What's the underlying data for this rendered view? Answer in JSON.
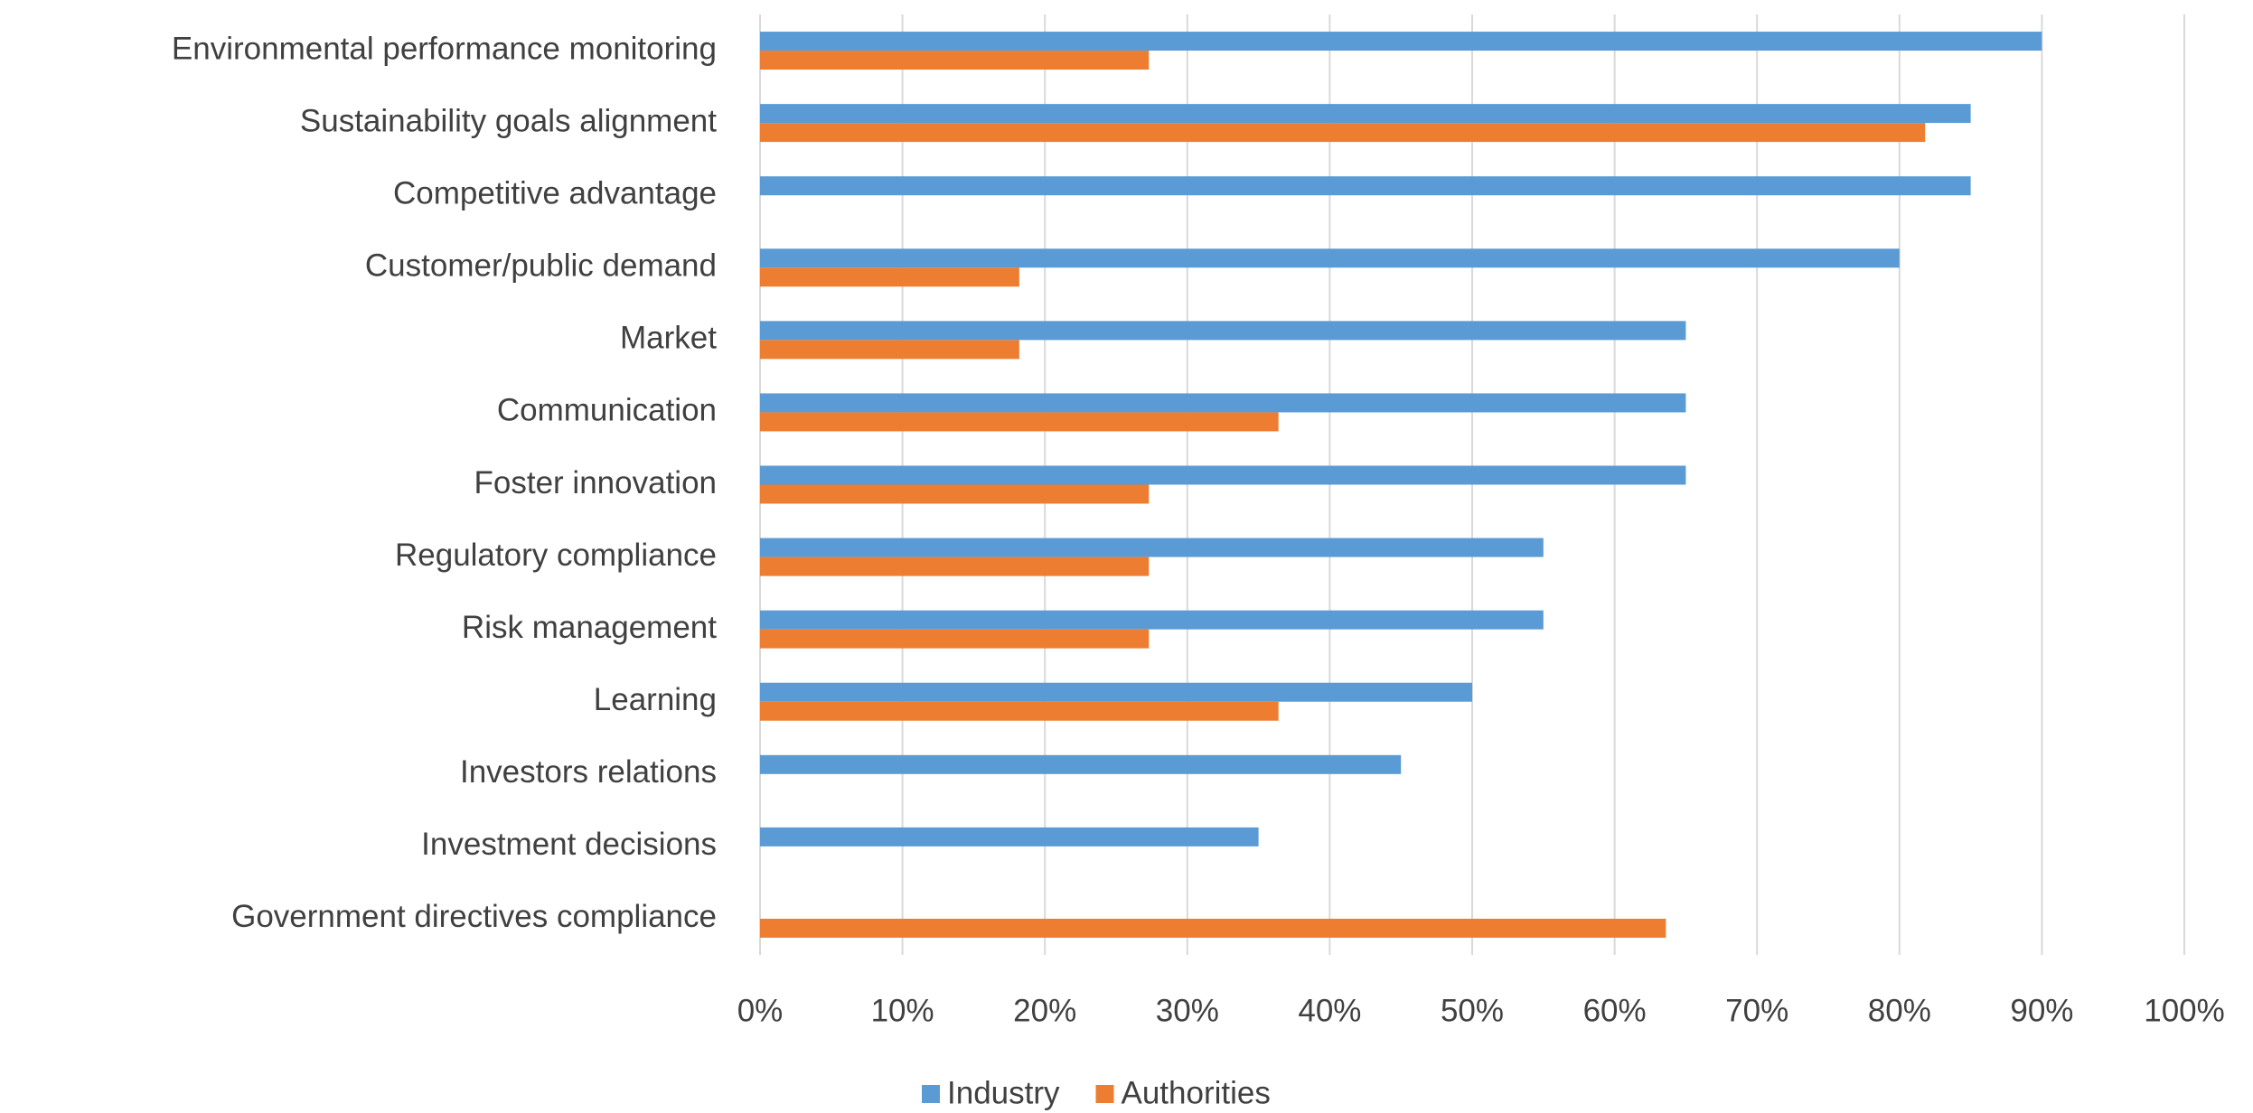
{
  "chart_data": {
    "type": "hbar",
    "categories": [
      "Environmental performance monitoring",
      "Sustainability goals alignment",
      "Competitive advantage",
      "Customer/public demand",
      "Market",
      "Communication",
      "Foster innovation",
      "Regulatory compliance",
      "Risk management",
      "Learning",
      "Investors relations",
      "Investment decisions",
      "Government directives compliance"
    ],
    "series": [
      {
        "name": "Industry",
        "color": "#5b9bd5",
        "values": [
          90,
          85,
          85,
          80,
          65,
          65,
          65,
          55,
          55,
          50,
          45,
          35,
          0
        ]
      },
      {
        "name": "Authorities",
        "color": "#ed7d31",
        "values": [
          27.3,
          81.8,
          0,
          18.2,
          18.2,
          36.4,
          27.3,
          27.3,
          27.3,
          36.4,
          0,
          0,
          63.6
        ]
      }
    ],
    "xlim": [
      0,
      100
    ],
    "xticks": [
      {
        "value": 0,
        "label": "0%"
      },
      {
        "value": 10,
        "label": "10%"
      },
      {
        "value": 20,
        "label": "20%"
      },
      {
        "value": 30,
        "label": "30%"
      },
      {
        "value": 40,
        "label": "40%"
      },
      {
        "value": 50,
        "label": "50%"
      },
      {
        "value": 60,
        "label": "60%"
      },
      {
        "value": 70,
        "label": "70%"
      },
      {
        "value": 80,
        "label": "80%"
      },
      {
        "value": 90,
        "label": "90%"
      },
      {
        "value": 100,
        "label": "100%"
      }
    ],
    "grid": true,
    "legend": "bottom"
  }
}
